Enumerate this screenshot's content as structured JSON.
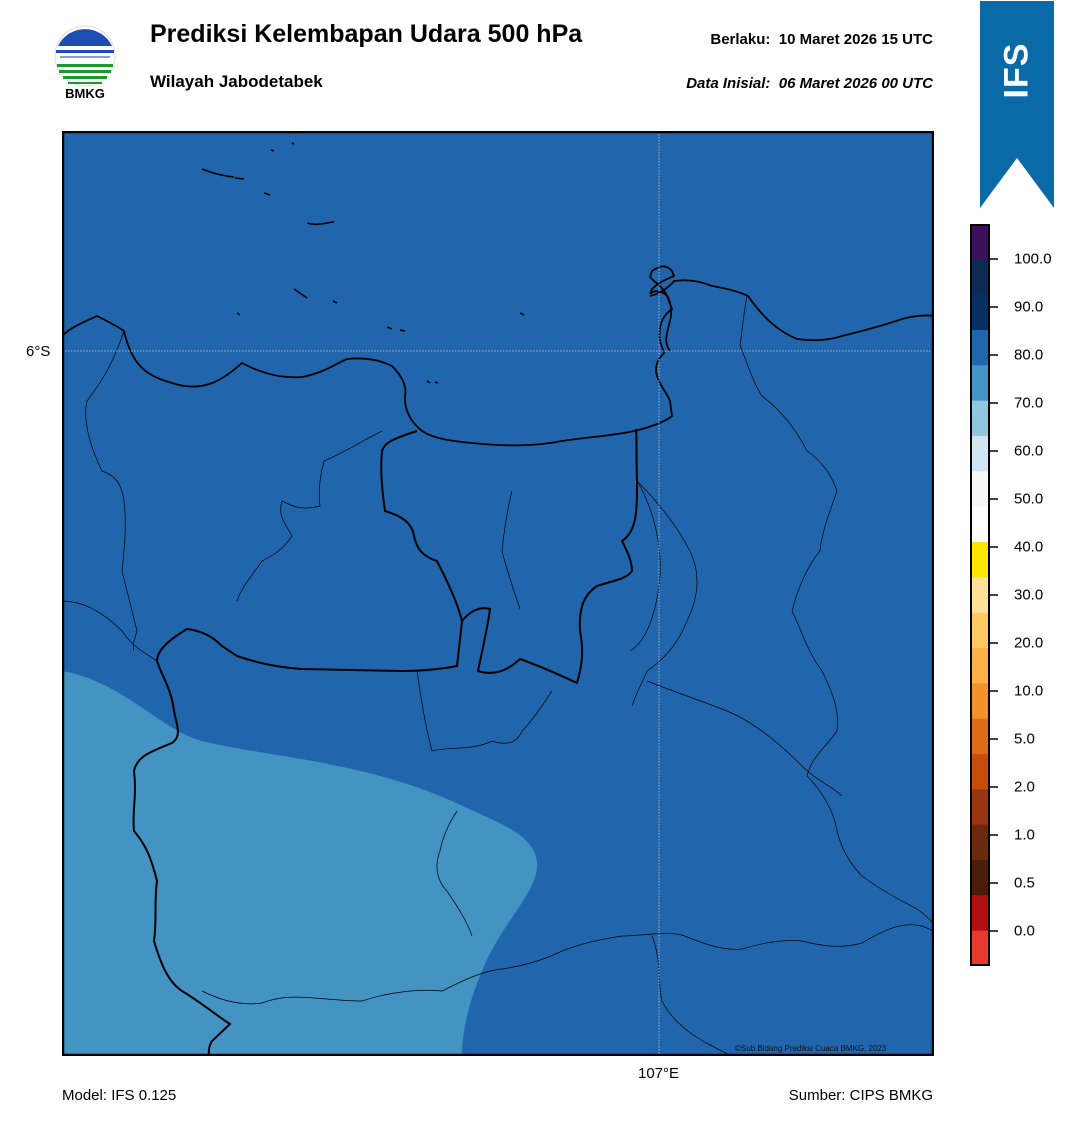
{
  "header": {
    "logo_label": "BMKG",
    "title": "Prediksi Kelembapan Udara 500 hPa",
    "subtitle": "Wilayah Jabodetabek",
    "valid_label": "Berlaku:",
    "valid_time": "10 Maret 2026 15 UTC",
    "init_label": "Data Inisial:",
    "init_time": "06 Maret 2026 00 UTC"
  },
  "map": {
    "lat_label": "6°S",
    "lon_label": "107°E",
    "credit": "©Sub Bidang Prediksi Cuaca BMKG, 2023",
    "field_colors": {
      "70-80": "#4393c3",
      "80-90": "#2166ac"
    }
  },
  "banner": {
    "label": "IFS",
    "color": "#0a6aa8"
  },
  "colorbar": {
    "labels": [
      "100.0",
      "90.0",
      "80.0",
      "70.0",
      "60.0",
      "50.0",
      "40.0",
      "30.0",
      "20.0",
      "10.0",
      "5.0",
      "2.0",
      "1.0",
      "0.5",
      "0.0"
    ],
    "colors": [
      "#3b0f5c",
      "#0d2b52",
      "#053061",
      "#2166ac",
      "#4393c3",
      "#92c5de",
      "#d1e5f0",
      "#f7f7f7",
      "#ffffff",
      "#ffe600",
      "#ffe09a",
      "#ffc861",
      "#fdb147",
      "#f4922a",
      "#e06b17",
      "#c84c0a",
      "#993510",
      "#6b2a0e",
      "#4a1c0a",
      "#b30f14",
      "#e83a2e"
    ]
  },
  "footer": {
    "model": "Model: IFS 0.125",
    "source": "Sumber: CIPS BMKG"
  }
}
